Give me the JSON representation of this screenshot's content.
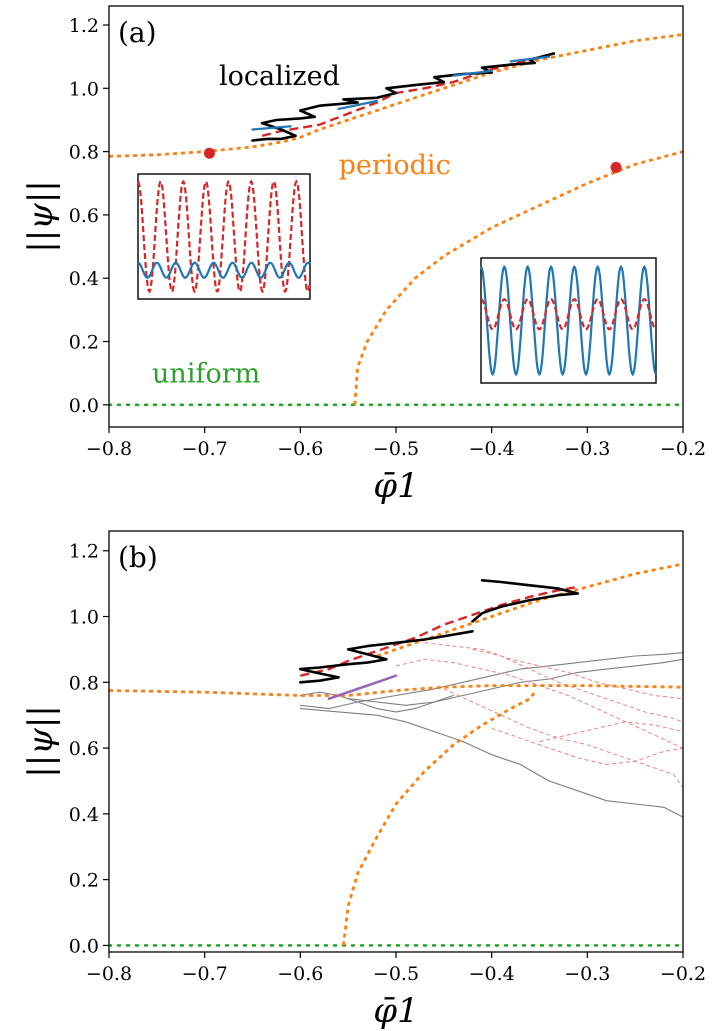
{
  "figure": {
    "colors": {
      "periodic": "#ff7f0e",
      "uniform": "#2ca02c",
      "red": "#d62728",
      "blue": "#1f77b4",
      "black": "#000000",
      "gray": "#7f7f7f",
      "pink": "#f08080",
      "purple": "#9467bd"
    }
  },
  "chart_data": [
    {
      "type": "line",
      "panel_label": "(a)",
      "xlabel": "φ̄1",
      "ylabel": "||ψ||",
      "xlim": [
        -0.8,
        -0.2
      ],
      "ylim": [
        -0.07,
        1.26
      ],
      "xticks": [
        -0.8,
        -0.7,
        -0.6,
        -0.5,
        -0.4,
        -0.3,
        -0.2
      ],
      "xtick_labels": [
        "−0.8",
        "−0.7",
        "−0.6",
        "−0.5",
        "−0.4",
        "−0.3",
        "−0.2"
      ],
      "yticks": [
        0.0,
        0.2,
        0.4,
        0.6,
        0.8,
        1.0,
        1.2
      ],
      "ytick_labels": [
        "0.0",
        "0.2",
        "0.4",
        "0.6",
        "0.8",
        "1.0",
        "1.2"
      ],
      "annotations": [
        {
          "text": "localized",
          "x": -0.685,
          "y": 1.01,
          "color": "black"
        },
        {
          "text": "periodic",
          "x": -0.56,
          "y": 0.73,
          "color": "periodic"
        },
        {
          "text": "uniform",
          "x": -0.755,
          "y": 0.07,
          "color": "uniform"
        }
      ],
      "markers": [
        {
          "x": -0.695,
          "y": 0.795,
          "color": "red"
        },
        {
          "x": -0.27,
          "y": 0.75,
          "color": "red"
        }
      ],
      "series": [
        {
          "style": "uniform",
          "x": [
            -0.8,
            -0.2
          ],
          "y": [
            0.0,
            0.0
          ]
        },
        {
          "style": "periodic",
          "x": [
            -0.8,
            -0.75,
            -0.7,
            -0.65,
            -0.62,
            -0.6,
            -0.58,
            -0.55,
            -0.5,
            -0.45,
            -0.4,
            -0.35,
            -0.3,
            -0.25,
            -0.2
          ],
          "y": [
            0.785,
            0.79,
            0.8,
            0.815,
            0.83,
            0.845,
            0.87,
            0.9,
            0.95,
            1.0,
            1.05,
            1.09,
            1.12,
            1.15,
            1.17
          ]
        },
        {
          "style": "periodic",
          "x": [
            -0.543,
            -0.54,
            -0.53,
            -0.51,
            -0.48,
            -0.45,
            -0.4,
            -0.35,
            -0.3,
            -0.25,
            -0.2
          ],
          "y": [
            0.0,
            0.12,
            0.2,
            0.3,
            0.4,
            0.47,
            0.56,
            0.63,
            0.7,
            0.76,
            0.8
          ]
        },
        {
          "style": "localized",
          "x": [
            -0.65,
            -0.635,
            -0.62,
            -0.605,
            -0.62,
            -0.64,
            -0.625,
            -0.6,
            -0.585,
            -0.6,
            -0.58,
            -0.56,
            -0.54,
            -0.555,
            -0.52,
            -0.5,
            -0.51,
            -0.48,
            -0.45,
            -0.46,
            -0.43,
            -0.4,
            -0.41,
            -0.38,
            -0.355,
            -0.36,
            -0.335
          ],
          "y": [
            0.835,
            0.84,
            0.84,
            0.85,
            0.87,
            0.89,
            0.9,
            0.905,
            0.91,
            0.93,
            0.945,
            0.95,
            0.955,
            0.965,
            0.97,
            0.985,
            1.0,
            1.01,
            1.02,
            1.035,
            1.045,
            1.05,
            1.065,
            1.075,
            1.08,
            1.09,
            1.11
          ]
        },
        {
          "style": "localized-red",
          "x": [
            -0.64,
            -0.62,
            -0.6,
            -0.58,
            -0.55,
            -0.52,
            -0.5,
            -0.47,
            -0.44,
            -0.42,
            -0.4,
            -0.38,
            -0.36,
            -0.34
          ],
          "y": [
            0.85,
            0.865,
            0.875,
            0.885,
            0.92,
            0.955,
            0.985,
            1.0,
            1.02,
            1.04,
            1.06,
            1.075,
            1.09,
            1.105
          ]
        },
        {
          "style": "localized-blue",
          "x": [
            -0.65,
            -0.63,
            -0.61
          ],
          "y": [
            0.87,
            0.875,
            0.88
          ]
        },
        {
          "style": "localized-blue",
          "x": [
            -0.56,
            -0.52
          ],
          "y": [
            0.935,
            0.96
          ]
        },
        {
          "style": "localized-blue",
          "x": [
            -0.44,
            -0.4
          ],
          "y": [
            1.04,
            1.055
          ]
        },
        {
          "style": "localized-blue",
          "x": [
            -0.38,
            -0.34
          ],
          "y": [
            1.085,
            1.1
          ]
        }
      ],
      "insets": [
        {
          "position": "left",
          "waves": [
            {
              "color": "red",
              "style": "dashed",
              "amplitude": 0.44,
              "cycles": 7.6,
              "offset": 0.5
            },
            {
              "color": "blue",
              "style": "solid",
              "amplitude": 0.06,
              "cycles": 9.1,
              "offset": 0.23
            }
          ]
        },
        {
          "position": "right",
          "waves": [
            {
              "color": "blue",
              "style": "solid",
              "amplitude": 0.43,
              "cycles": 7.5,
              "offset": 0.5
            },
            {
              "color": "red",
              "style": "dashed",
              "amplitude": 0.12,
              "cycles": 7.5,
              "offset": 0.55
            }
          ]
        }
      ]
    },
    {
      "type": "line",
      "panel_label": "(b)",
      "xlabel": "φ̄1",
      "ylabel": "||ψ||",
      "xlim": [
        -0.8,
        -0.2
      ],
      "ylim": [
        -0.02,
        1.26
      ],
      "xticks": [
        -0.8,
        -0.7,
        -0.6,
        -0.5,
        -0.4,
        -0.3,
        -0.2
      ],
      "xtick_labels": [
        "−0.8",
        "−0.7",
        "−0.6",
        "−0.5",
        "−0.4",
        "−0.3",
        "−0.2"
      ],
      "yticks": [
        0.0,
        0.2,
        0.4,
        0.6,
        0.8,
        1.0,
        1.2
      ],
      "ytick_labels": [
        "0.0",
        "0.2",
        "0.4",
        "0.6",
        "0.8",
        "1.0",
        "1.2"
      ],
      "series": [
        {
          "style": "uniform",
          "x": [
            -0.8,
            -0.2
          ],
          "y": [
            0.0,
            0.0
          ]
        },
        {
          "style": "periodic",
          "x": [
            -0.8,
            -0.7,
            -0.6,
            -0.55,
            -0.5,
            -0.45,
            -0.4,
            -0.3,
            -0.2
          ],
          "y": [
            0.775,
            0.77,
            0.76,
            0.76,
            0.775,
            0.785,
            0.79,
            0.79,
            0.785
          ]
        },
        {
          "style": "periodic",
          "x": [
            -0.555,
            -0.55,
            -0.54,
            -0.52,
            -0.5,
            -0.47,
            -0.44,
            -0.41,
            -0.38,
            -0.36,
            -0.355
          ],
          "y": [
            0.0,
            0.12,
            0.22,
            0.33,
            0.43,
            0.53,
            0.61,
            0.67,
            0.72,
            0.75,
            0.77
          ]
        },
        {
          "style": "periodic",
          "x": [
            -0.52,
            -0.5,
            -0.45,
            -0.4,
            -0.35,
            -0.3,
            -0.25,
            -0.2
          ],
          "y": [
            0.88,
            0.9,
            0.95,
            1.0,
            1.05,
            1.09,
            1.13,
            1.16
          ]
        },
        {
          "style": "localized",
          "x": [
            -0.6,
            -0.58,
            -0.56,
            -0.585,
            -0.6,
            -0.58,
            -0.55,
            -0.53,
            -0.51,
            -0.53,
            -0.55,
            -0.53,
            -0.5,
            -0.47,
            -0.44,
            -0.42
          ],
          "y": [
            0.8,
            0.805,
            0.815,
            0.83,
            0.84,
            0.845,
            0.855,
            0.86,
            0.87,
            0.885,
            0.9,
            0.91,
            0.92,
            0.93,
            0.945,
            0.955
          ]
        },
        {
          "style": "localized",
          "x": [
            -0.42,
            -0.41,
            -0.39,
            -0.36,
            -0.33,
            -0.31,
            -0.33,
            -0.36,
            -0.39,
            -0.41
          ],
          "y": [
            0.985,
            1.01,
            1.03,
            1.05,
            1.065,
            1.07,
            1.085,
            1.095,
            1.105,
            1.11
          ]
        },
        {
          "style": "localized-red",
          "x": [
            -0.6,
            -0.57,
            -0.55,
            -0.53,
            -0.51,
            -0.48,
            -0.45,
            -0.42,
            -0.39,
            -0.36,
            -0.33,
            -0.31
          ],
          "y": [
            0.82,
            0.84,
            0.865,
            0.885,
            0.905,
            0.935,
            0.975,
            1.005,
            1.035,
            1.06,
            1.08,
            1.09
          ]
        },
        {
          "style": "purple",
          "x": [
            -0.57,
            -0.54,
            -0.515,
            -0.5
          ],
          "y": [
            0.75,
            0.78,
            0.805,
            0.82
          ]
        },
        {
          "style": "gray",
          "x": [
            -0.6,
            -0.57,
            -0.54,
            -0.5,
            -0.46,
            -0.43,
            -0.4,
            -0.37,
            -0.34,
            -0.31,
            -0.28,
            -0.25,
            -0.22,
            -0.2
          ],
          "y": [
            0.73,
            0.72,
            0.74,
            0.76,
            0.78,
            0.8,
            0.82,
            0.84,
            0.85,
            0.86,
            0.87,
            0.88,
            0.885,
            0.89
          ]
        },
        {
          "style": "gray",
          "x": [
            -0.6,
            -0.56,
            -0.52,
            -0.49,
            -0.46,
            -0.43,
            -0.4,
            -0.37,
            -0.34,
            -0.31,
            -0.28,
            -0.25,
            -0.22,
            -0.2
          ],
          "y": [
            0.72,
            0.71,
            0.7,
            0.68,
            0.65,
            0.62,
            0.58,
            0.55,
            0.5,
            0.47,
            0.44,
            0.43,
            0.42,
            0.39
          ]
        },
        {
          "style": "gray",
          "x": [
            -0.55,
            -0.52,
            -0.49,
            -0.46,
            -0.43,
            -0.4,
            -0.37,
            -0.34,
            -0.31,
            -0.28,
            -0.25,
            -0.22,
            -0.2
          ],
          "y": [
            0.75,
            0.74,
            0.73,
            0.74,
            0.76,
            0.78,
            0.8,
            0.81,
            0.83,
            0.84,
            0.85,
            0.86,
            0.87
          ]
        },
        {
          "style": "gray",
          "x": [
            -0.6,
            -0.58,
            -0.56,
            -0.54,
            -0.52,
            -0.5,
            -0.48,
            -0.46,
            -0.44
          ],
          "y": [
            0.76,
            0.77,
            0.76,
            0.74,
            0.72,
            0.71,
            0.72,
            0.74,
            0.76
          ]
        },
        {
          "style": "pink",
          "x": [
            -0.5,
            -0.47,
            -0.44,
            -0.41,
            -0.38,
            -0.35,
            -0.32,
            -0.29,
            -0.26,
            -0.23,
            -0.2
          ],
          "y": [
            0.85,
            0.87,
            0.86,
            0.84,
            0.82,
            0.79,
            0.76,
            0.72,
            0.68,
            0.64,
            0.6
          ]
        },
        {
          "style": "pink",
          "x": [
            -0.45,
            -0.42,
            -0.39,
            -0.36,
            -0.33,
            -0.3,
            -0.27,
            -0.24,
            -0.21,
            -0.2
          ],
          "y": [
            0.78,
            0.74,
            0.7,
            0.66,
            0.63,
            0.61,
            0.58,
            0.55,
            0.52,
            0.48
          ]
        },
        {
          "style": "pink",
          "x": [
            -0.4,
            -0.37,
            -0.34,
            -0.31,
            -0.28,
            -0.25,
            -0.22,
            -0.2
          ],
          "y": [
            0.66,
            0.63,
            0.6,
            0.57,
            0.55,
            0.56,
            0.59,
            0.6
          ]
        },
        {
          "style": "pink",
          "x": [
            -0.35,
            -0.32,
            -0.29,
            -0.26,
            -0.23,
            -0.2
          ],
          "y": [
            0.62,
            0.64,
            0.66,
            0.68,
            0.67,
            0.65
          ]
        },
        {
          "style": "pink",
          "x": [
            -0.47,
            -0.44,
            -0.41,
            -0.38,
            -0.35,
            -0.32,
            -0.29,
            -0.26,
            -0.23,
            -0.2
          ],
          "y": [
            0.92,
            0.91,
            0.9,
            0.87,
            0.85,
            0.83,
            0.8,
            0.78,
            0.76,
            0.75
          ]
        },
        {
          "style": "pink",
          "x": [
            -0.42,
            -0.39,
            -0.36,
            -0.33,
            -0.3,
            -0.27,
            -0.24,
            -0.21,
            -0.2
          ],
          "y": [
            0.9,
            0.88,
            0.84,
            0.8,
            0.77,
            0.74,
            0.71,
            0.69,
            0.68
          ]
        }
      ]
    }
  ]
}
